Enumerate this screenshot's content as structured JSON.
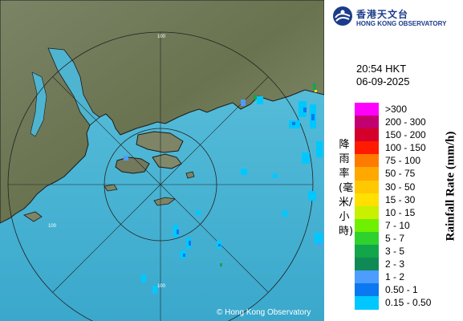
{
  "map": {
    "copyright": "© Hong Kong Observatory",
    "ring_label": "100",
    "colors": {
      "sea": "#4fb9d8",
      "land": "#6f7a5c",
      "land_light": "#8b9471",
      "coast": "#1a1a1a",
      "ring": "#222222"
    }
  },
  "header": {
    "logo_zh": "香港天文台",
    "logo_en": "HONG KONG OBSERVATORY",
    "logo_icon": "hko-logo-icon"
  },
  "timestamp": {
    "time": "20:54 HKT",
    "date": "06-09-2025"
  },
  "legend": {
    "title_en": "Rainfall Rate (mm/h)",
    "title_zh": "降雨率(毫米/小時)",
    "items": [
      {
        "label": ">300",
        "color": "#ff00ff"
      },
      {
        "label": "200 - 300",
        "color": "#c2006f"
      },
      {
        "label": "150 - 200",
        "color": "#d4002b"
      },
      {
        "label": "100 - 150",
        "color": "#ff1a00"
      },
      {
        "label": "75 - 100",
        "color": "#ff7a00"
      },
      {
        "label": "50 - 75",
        "color": "#ffa800"
      },
      {
        "label": "30 - 50",
        "color": "#ffc800"
      },
      {
        "label": "15 - 30",
        "color": "#ffe000"
      },
      {
        "label": "10 - 15",
        "color": "#c8f000"
      },
      {
        "label": "7 - 10",
        "color": "#6ef000"
      },
      {
        "label": "5 - 7",
        "color": "#2ed12e"
      },
      {
        "label": "3 - 5",
        "color": "#13a54a"
      },
      {
        "label": "2 - 3",
        "color": "#0f8a55"
      },
      {
        "label": "1 - 2",
        "color": "#4d9cff"
      },
      {
        "label": "0.50 - 1",
        "color": "#0a78f0"
      },
      {
        "label": "0.15 - 0.50",
        "color": "#00c8ff"
      }
    ]
  }
}
